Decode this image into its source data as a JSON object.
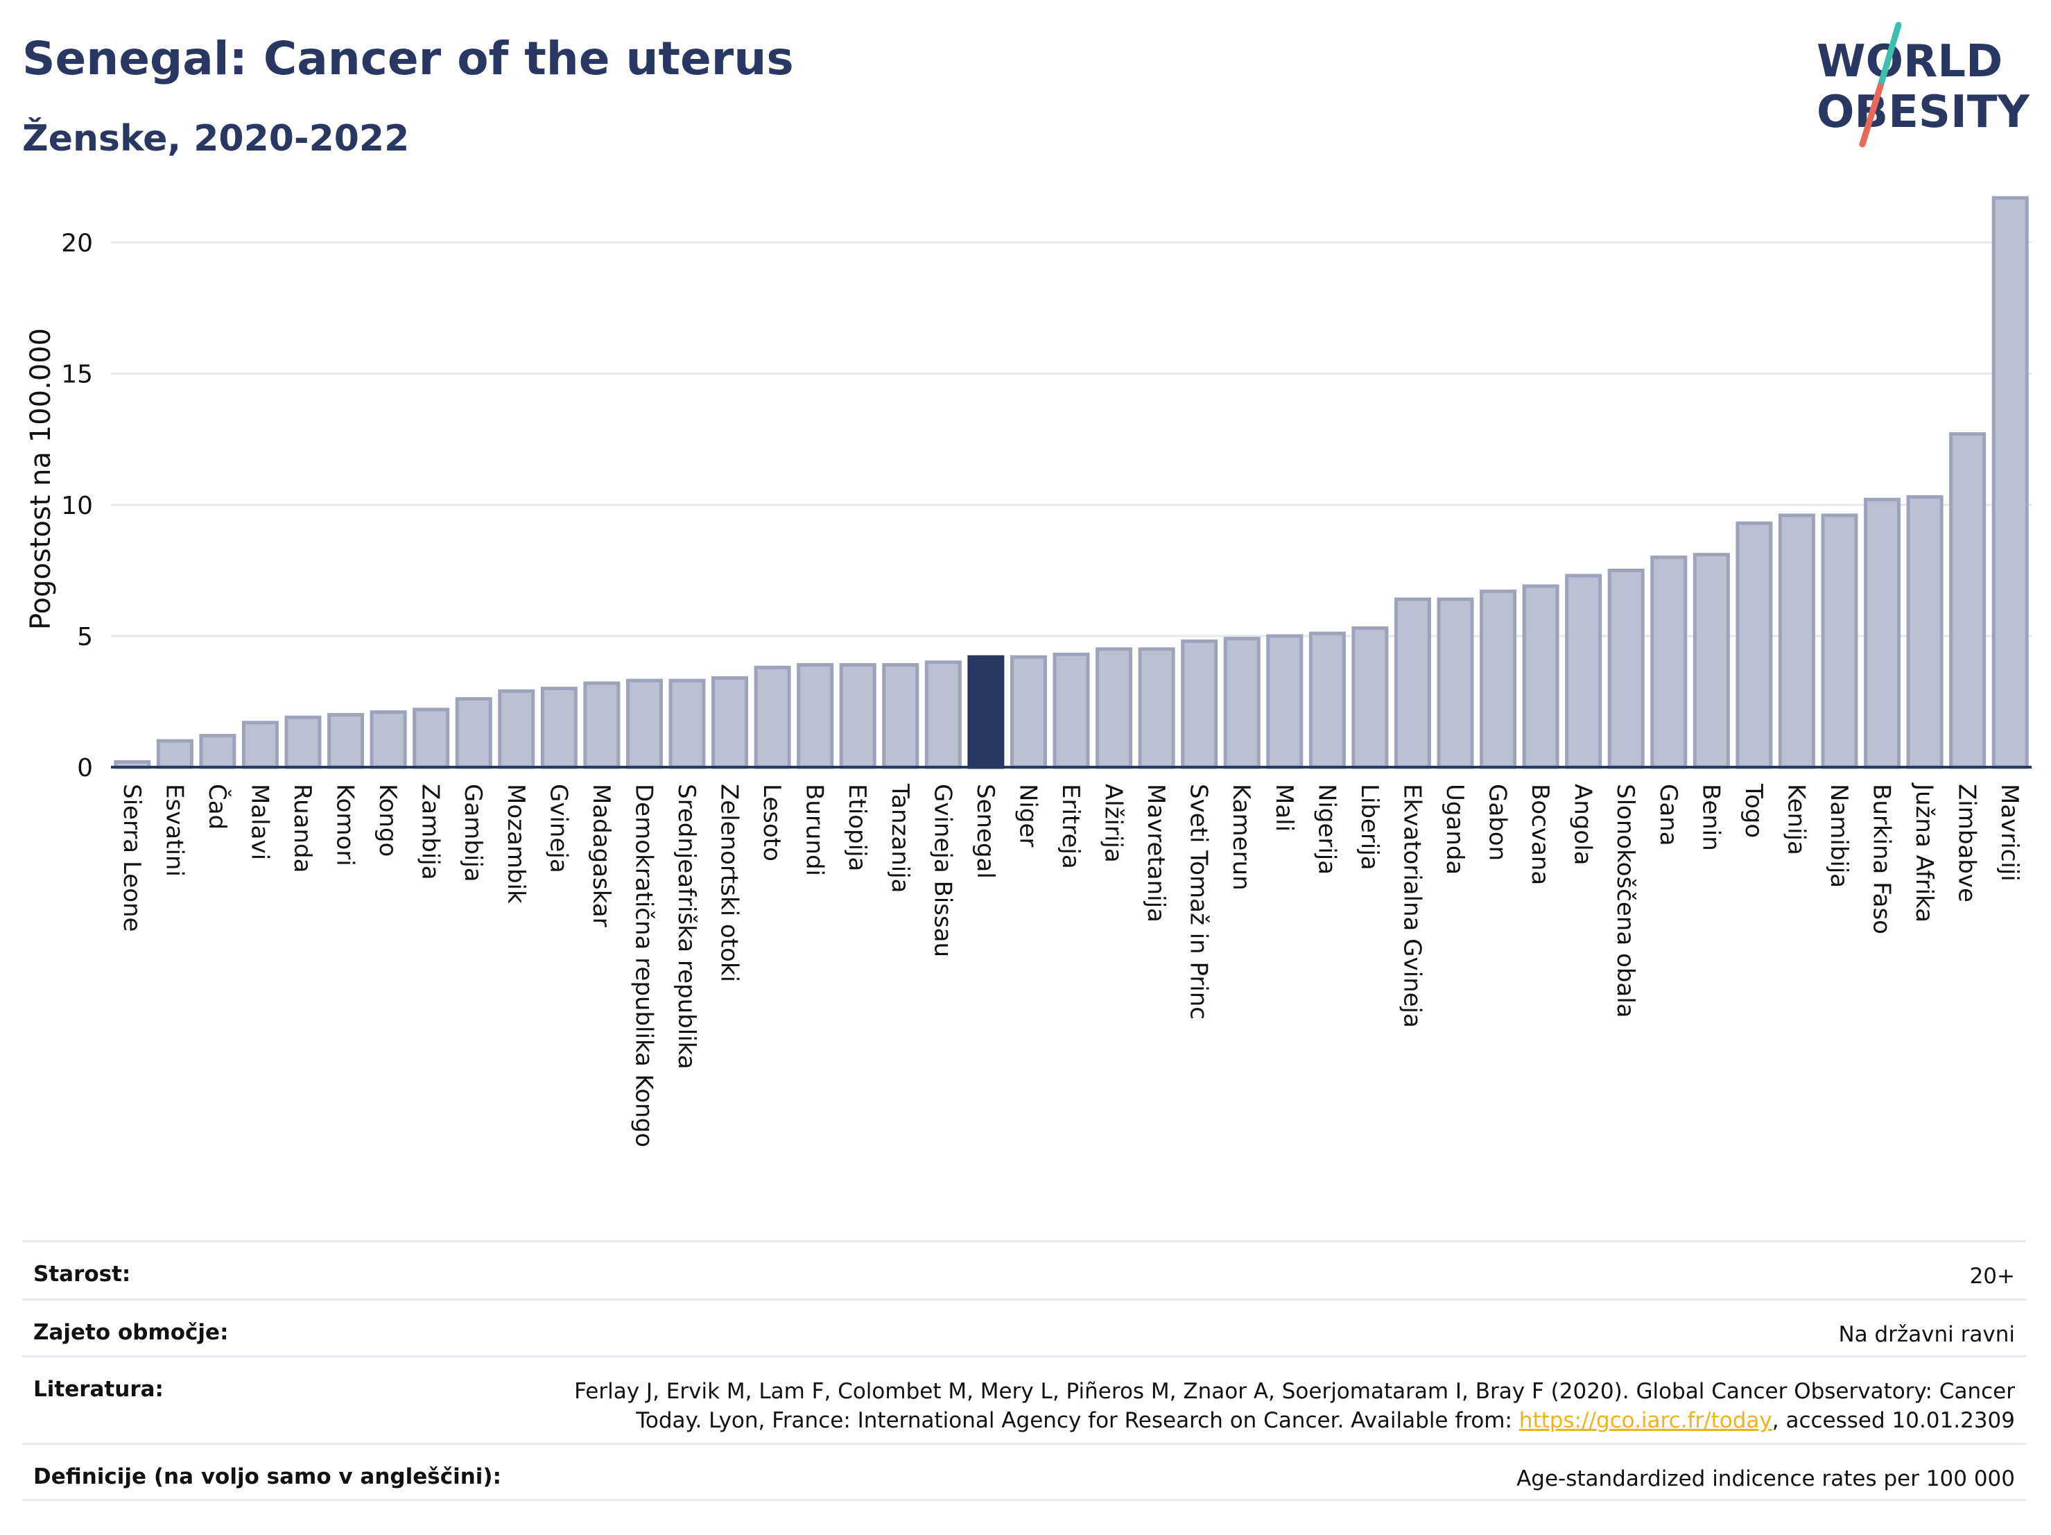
{
  "header": {
    "title": "Senegal: Cancer of the uterus",
    "subtitle": "Ženske, 2020-2022"
  },
  "logo": {
    "line1": "WORLD",
    "line2": "OBESITY",
    "colors": {
      "text": "#2a3763",
      "slash_teal": "#3bbfb1",
      "slash_red": "#e8685a"
    }
  },
  "colors": {
    "bar_fill": "#bcc1d1",
    "bar_stroke": "#9ca3bb",
    "highlight_fill": "#2a3763",
    "axis": "#2a3763",
    "grid": "#e5e7ee",
    "link": "#f2b21d"
  },
  "chart_data": {
    "type": "bar",
    "title": "",
    "xlabel": "",
    "ylabel": "Pogostost na 100.000",
    "ylim": [
      0,
      22.5
    ],
    "yticks": [
      0,
      5,
      10,
      15,
      20
    ],
    "grid": true,
    "highlight": "Senegal",
    "categories": [
      "Sierra Leone",
      "Esvatini",
      "Čad",
      "Malavi",
      "Ruanda",
      "Komori",
      "Kongo",
      "Zambija",
      "Gambija",
      "Mozambik",
      "Gvineja",
      "Madagaskar",
      "Demokratična republika Kongo",
      "Srednjeafriška republika",
      "Zelenortski otoki",
      "Lesoto",
      "Burundi",
      "Etiopija",
      "Tanzanija",
      "Gvineja Bissau",
      "Senegal",
      "Niger",
      "Eritreja",
      "Alžirija",
      "Mavretanija",
      "Sveti Tomaž in Princ",
      "Kamerun",
      "Mali",
      "Nigerija",
      "Liberija",
      "Ekvatorialna Gvineja",
      "Uganda",
      "Gabon",
      "Bocvana",
      "Angola",
      "Slonokoščena obala",
      "Gana",
      "Benin",
      "Togo",
      "Kenija",
      "Namibija",
      "Burkina Faso",
      "Južna Afrika",
      "Zimbabve",
      "Mavriciji"
    ],
    "values": [
      0.2,
      1.0,
      1.2,
      1.7,
      1.9,
      2.0,
      2.1,
      2.2,
      2.6,
      2.9,
      3.0,
      3.2,
      3.3,
      3.3,
      3.4,
      3.8,
      3.9,
      3.9,
      3.9,
      4.0,
      4.2,
      4.2,
      4.3,
      4.5,
      4.5,
      4.8,
      4.9,
      5.0,
      5.1,
      5.3,
      6.4,
      6.4,
      6.7,
      6.9,
      7.3,
      7.5,
      8.0,
      8.1,
      9.3,
      9.6,
      9.6,
      10.2,
      10.3,
      12.7,
      21.7
    ]
  },
  "meta": {
    "age_label": "Starost:",
    "age_value": "20+",
    "coverage_label": "Zajeto območje:",
    "coverage_value": "Na državni ravni",
    "references_label": "Literatura:",
    "references_text_1": "Ferlay J, Ervik M, Lam F, Colombet M, Mery L, Piñeros M, Znaor A, Soerjomataram I, Bray F (2020). Global Cancer Observatory: Cancer",
    "references_text_2": "Today. Lyon, France: International Agency for Research on Cancer. Available from: ",
    "references_link": "https://gco.iarc.fr/today",
    "references_text_3": ", accessed 10.01.2309",
    "definitions_label": "Definicije (na voljo samo v angleščini):",
    "definitions_value": "Age-standardized indicence rates per 100 000"
  }
}
